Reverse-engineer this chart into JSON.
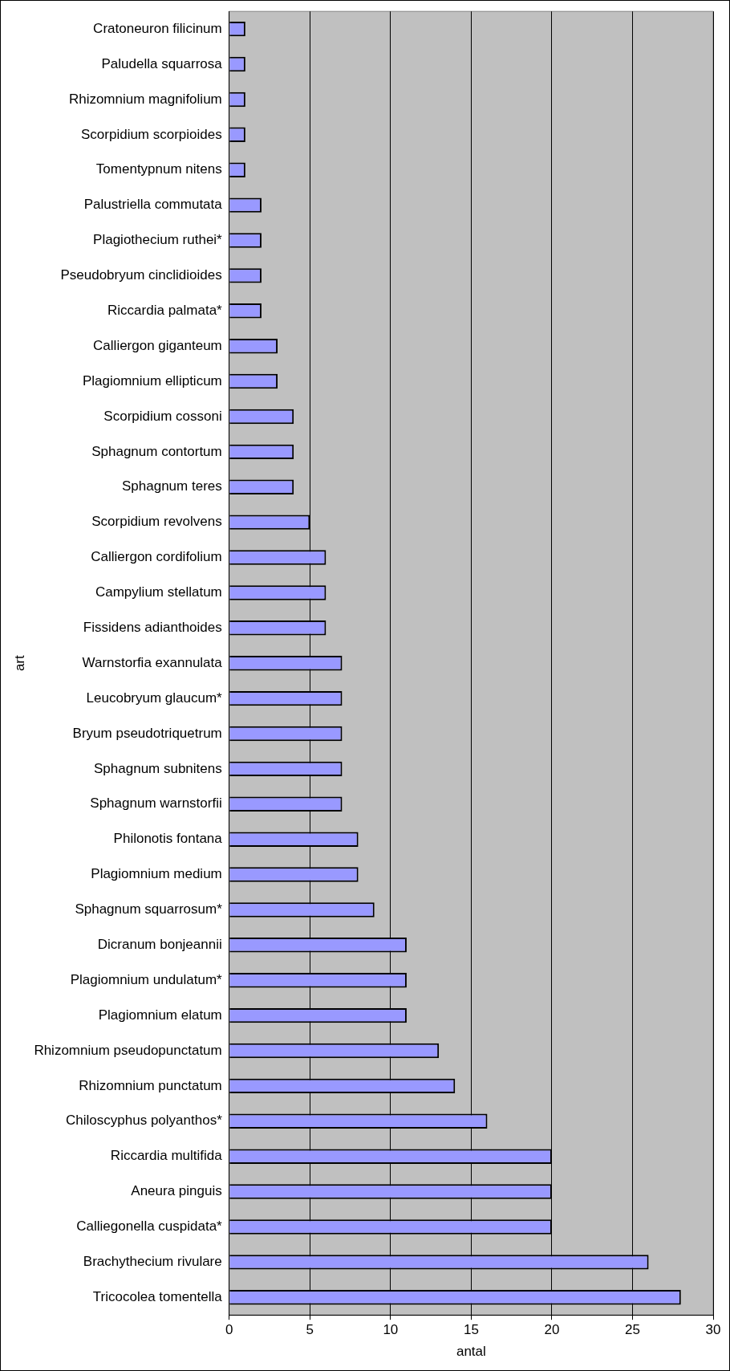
{
  "chart_data": {
    "type": "bar",
    "orientation": "horizontal",
    "xlabel": "antal",
    "ylabel": "art",
    "categories": [
      "Cratoneuron filicinum",
      "Paludella squarrosa",
      "Rhizomnium magnifolium",
      "Scorpidium scorpioides",
      "Tomentypnum nitens",
      "Palustriella commutata",
      "Plagiothecium ruthei*",
      "Pseudobryum cinclidioides",
      "Riccardia palmata*",
      "Calliergon giganteum",
      "Plagiomnium ellipticum",
      "Scorpidium cossoni",
      "Sphagnum contortum",
      "Sphagnum teres",
      "Scorpidium revolvens",
      "Calliergon cordifolium",
      "Campylium stellatum",
      "Fissidens adianthoides",
      "Warnstorfia exannulata",
      "Leucobryum glaucum*",
      "Bryum pseudotriquetrum",
      "Sphagnum subnitens",
      "Sphagnum warnstorfii",
      "Philonotis fontana",
      "Plagiomnium medium",
      "Sphagnum squarrosum*",
      "Dicranum bonjeannii",
      "Plagiomnium undulatum*",
      "Plagiomnium elatum",
      "Rhizomnium pseudopunctatum",
      "Rhizomnium punctatum",
      "Chiloscyphus polyanthos*",
      "Riccardia multifida",
      "Aneura pinguis",
      "Calliegonella cuspidata*",
      "Brachythecium rivulare",
      "Tricocolea tomentella"
    ],
    "values": [
      1,
      1,
      1,
      1,
      1,
      2,
      2,
      2,
      2,
      3,
      3,
      4,
      4,
      4,
      5,
      6,
      6,
      6,
      7,
      7,
      7,
      7,
      7,
      8,
      8,
      9,
      11,
      11,
      11,
      13,
      14,
      16,
      20,
      20,
      20,
      26,
      28
    ],
    "color": "#9999ff",
    "xlim": [
      0,
      30
    ],
    "xticks": [
      0,
      5,
      10,
      15,
      20,
      25,
      30
    ],
    "grid": "x",
    "legend": false
  }
}
